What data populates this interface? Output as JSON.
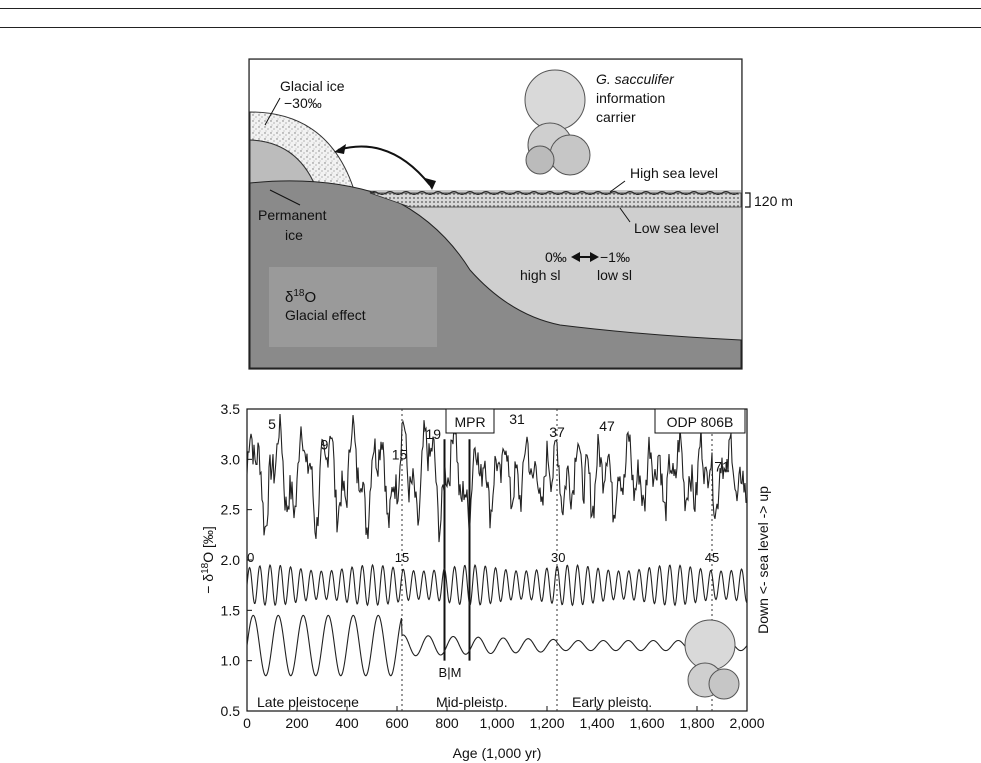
{
  "diagram": {
    "glacial_ice_label": "Glacial ice",
    "glacial_ice_value": "−30‰",
    "permanent_ice_label_1": "Permanent",
    "permanent_ice_label_2": "ice",
    "species_italic": "G. sacculifer",
    "species_line_2": "information",
    "species_line_3": "carrier",
    "high_sea_level": "High sea level",
    "low_sea_level": "Low sea level",
    "range_label": "120 m",
    "left_value": "0‰",
    "right_value": "−1‰",
    "left_caption": "high sl",
    "right_caption": "low sl",
    "effect_symbol": "δ",
    "effect_superscript": "18",
    "effect_o": "O",
    "effect_label": "Glacial effect"
  },
  "chart_data": {
    "type": "line",
    "xlabel": "Age (1,000 yr)",
    "ylabel_prefix": "− δ",
    "ylabel_super": "18",
    "ylabel_suffix": "O [‰]",
    "right_label": "Down <- sea level -> up",
    "xlim": [
      0,
      2000
    ],
    "ylim": [
      0.5,
      3.5
    ],
    "x_ticks": [
      0,
      200,
      400,
      600,
      800,
      1000,
      1200,
      1400,
      1600,
      1800,
      2000
    ],
    "x_tick_labels": [
      "0",
      "200",
      "400",
      "600",
      "800",
      "1,000",
      "1,200",
      "1,400",
      "1,600",
      "1,800",
      "2,000"
    ],
    "y_ticks": [
      0.5,
      1.0,
      1.5,
      2.0,
      2.5,
      3.0,
      3.5
    ],
    "y_tick_labels": [
      "0.5",
      "1.0",
      "1.5",
      "2.0",
      "2.5",
      "3.0",
      "3.5"
    ],
    "dotted_lines_x": [
      620,
      1240,
      1860
    ],
    "solid_marker_x": [
      790,
      890
    ],
    "box_labels": {
      "mpr": "MPR",
      "site": "ODP 806B"
    },
    "stage_labels": [
      {
        "text": "5",
        "x": 100,
        "y": 3.3
      },
      {
        "text": "9",
        "x": 310,
        "y": 3.1
      },
      {
        "text": "15",
        "x": 610,
        "y": 3.0
      },
      {
        "text": "19",
        "x": 745,
        "y": 3.2
      },
      {
        "text": "31",
        "x": 1080,
        "y": 3.35
      },
      {
        "text": "37",
        "x": 1240,
        "y": 3.22
      },
      {
        "text": "47",
        "x": 1440,
        "y": 3.28
      },
      {
        "text": "71",
        "x": 1900,
        "y": 2.88
      }
    ],
    "cycle_labels": [
      {
        "text": "0",
        "x": 15,
        "y": 1.98
      },
      {
        "text": "15",
        "x": 620,
        "y": 1.98
      },
      {
        "text": "30",
        "x": 1245,
        "y": 1.98
      },
      {
        "text": "45",
        "x": 1860,
        "y": 1.98
      }
    ],
    "bm_label": "B|M",
    "bm_x": 800,
    "era_labels": [
      "Late pleistocene",
      "Mid-pleisto.",
      "Early pleisto."
    ],
    "series": [
      {
        "role": "benthic_d18O_record",
        "baseline": 2.85,
        "amplitude": 0.35
      },
      {
        "role": "obliquity_cycles",
        "baseline": 1.75,
        "amplitude": 0.2,
        "period": 41
      },
      {
        "role": "eccentricity_cycles",
        "baseline": 1.15,
        "amplitude": 0.3,
        "period": 100
      }
    ]
  }
}
